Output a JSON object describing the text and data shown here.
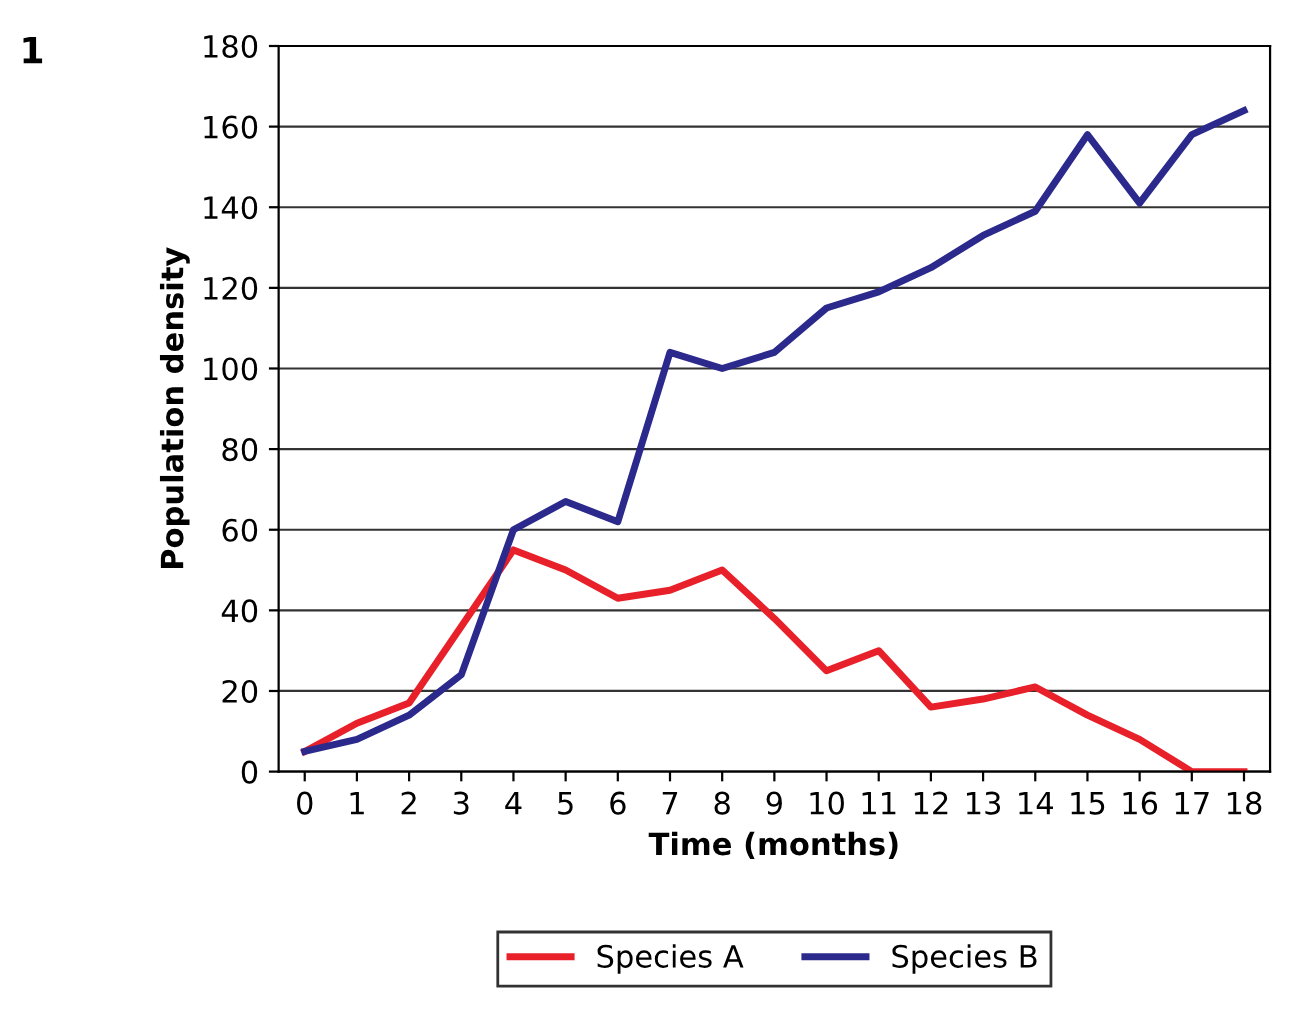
{
  "chart_data": {
    "type": "line",
    "annotations": [
      "1"
    ],
    "xlabel": "Time (months)",
    "ylabel": "Population density",
    "x": [
      0,
      1,
      2,
      3,
      4,
      5,
      6,
      7,
      8,
      9,
      10,
      11,
      12,
      13,
      14,
      15,
      16,
      17,
      18
    ],
    "series": [
      {
        "name": "Species A",
        "color": "#e8202a",
        "values": [
          5,
          12,
          17,
          36,
          55,
          50,
          43,
          45,
          50,
          38,
          25,
          30,
          16,
          18,
          21,
          14,
          8,
          0,
          0
        ]
      },
      {
        "name": "Species B",
        "color": "#2b2a8c",
        "values": [
          5,
          8,
          14,
          24,
          60,
          67,
          62,
          104,
          100,
          104,
          115,
          119,
          125,
          133,
          139,
          158,
          141,
          158,
          164
        ]
      }
    ],
    "xlim": [
      -0.5,
      18.5
    ],
    "xticks": [
      0,
      1,
      2,
      3,
      4,
      5,
      6,
      7,
      8,
      9,
      10,
      11,
      12,
      13,
      14,
      15,
      16,
      17,
      18
    ],
    "ylim": [
      0,
      180
    ],
    "yticks": [
      0,
      20,
      40,
      60,
      80,
      100,
      120,
      140,
      160,
      180
    ],
    "grid": "y",
    "legend": "bottom",
    "marker": "none",
    "line_style": "solid"
  }
}
